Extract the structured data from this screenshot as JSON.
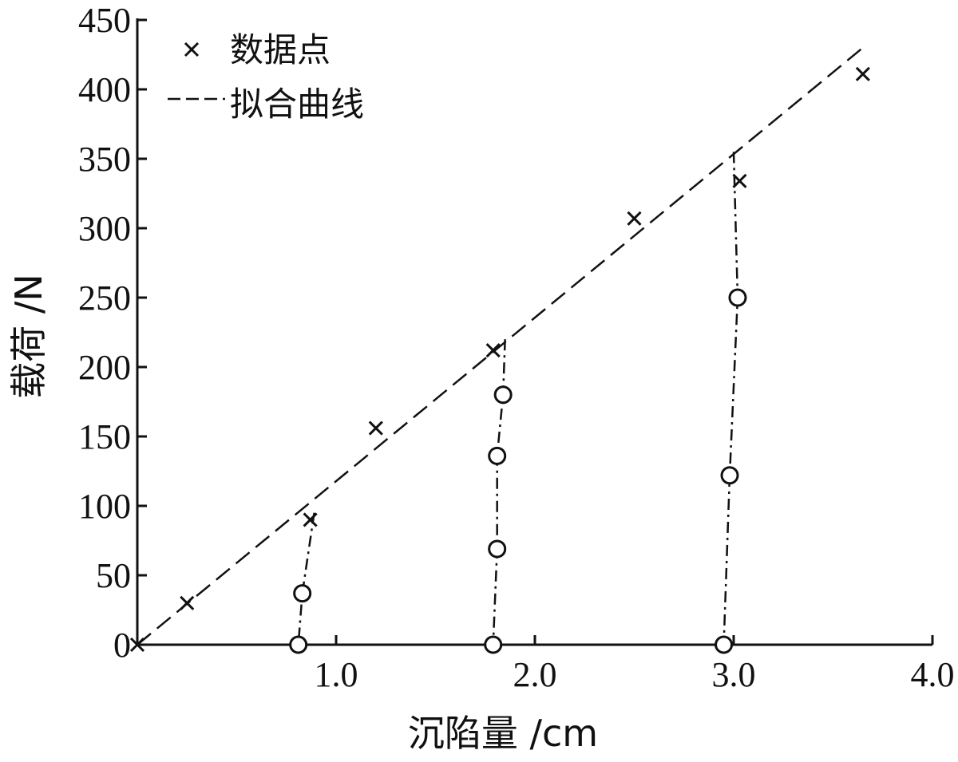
{
  "chart_data": {
    "type": "scatter",
    "xlabel": "沉陷量 /cm",
    "ylabel": "载荷 /N",
    "xlim": [
      0,
      4.0
    ],
    "ylim": [
      0,
      450
    ],
    "x_ticks": [
      {
        "value": 1.0,
        "label": "1.0"
      },
      {
        "value": 2.0,
        "label": "2.0"
      },
      {
        "value": 3.0,
        "label": "3.0"
      },
      {
        "value": 4.0,
        "label": "4.0"
      }
    ],
    "y_ticks": [
      {
        "value": 0,
        "label": "0"
      },
      {
        "value": 50,
        "label": "50"
      },
      {
        "value": 100,
        "label": "100"
      },
      {
        "value": 150,
        "label": "150"
      },
      {
        "value": 200,
        "label": "200"
      },
      {
        "value": 250,
        "label": "250"
      },
      {
        "value": 300,
        "label": "300"
      },
      {
        "value": 350,
        "label": "350"
      },
      {
        "value": 400,
        "label": "400"
      },
      {
        "value": 450,
        "label": "450"
      }
    ],
    "legend": {
      "position": "top-left",
      "entries": [
        {
          "label": "数据点",
          "marker": "x"
        },
        {
          "label": "拟合曲线",
          "marker": "dashed-line"
        }
      ]
    },
    "data_points": {
      "name": "数据点",
      "x": [
        0.0,
        0.25,
        0.87,
        1.2,
        1.79,
        2.5,
        3.03,
        3.65
      ],
      "y": [
        0,
        30,
        90,
        156,
        212,
        307,
        334,
        411
      ]
    },
    "fit_line": {
      "name": "拟合曲线",
      "x": [
        0.0,
        3.65
      ],
      "y": [
        0,
        430
      ]
    },
    "unloading_curves": [
      {
        "x": [
          0.89,
          0.83,
          0.81
        ],
        "y": [
          95,
          37,
          0
        ],
        "circles": [
          {
            "x": 0.83,
            "y": 37
          },
          {
            "x": 0.81,
            "y": 0
          }
        ]
      },
      {
        "x": [
          1.85,
          1.84,
          1.81,
          1.81,
          1.79
        ],
        "y": [
          220,
          180,
          136,
          69,
          0
        ],
        "circles": [
          {
            "x": 1.84,
            "y": 180
          },
          {
            "x": 1.81,
            "y": 136
          },
          {
            "x": 1.81,
            "y": 69
          },
          {
            "x": 1.79,
            "y": 0
          }
        ]
      },
      {
        "x": [
          3.0,
          3.02,
          2.98,
          2.95
        ],
        "y": [
          355,
          250,
          122,
          0
        ],
        "circles": [
          {
            "x": 3.02,
            "y": 250
          },
          {
            "x": 2.98,
            "y": 122
          },
          {
            "x": 2.95,
            "y": 0
          }
        ]
      }
    ],
    "grid": false,
    "colors": {
      "ink": "#111111",
      "background": "#ffffff"
    }
  }
}
